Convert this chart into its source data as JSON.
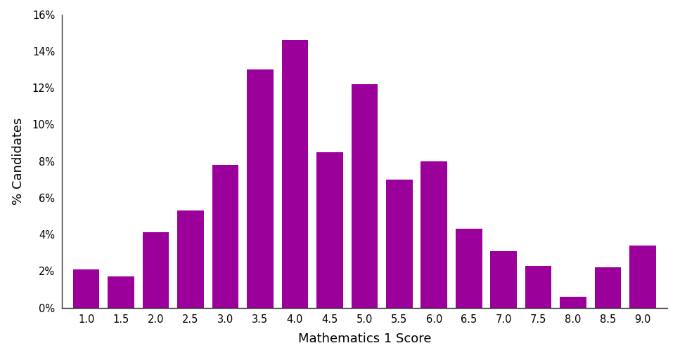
{
  "categories": [
    1.0,
    1.5,
    2.0,
    2.5,
    3.0,
    3.5,
    4.0,
    4.5,
    5.0,
    5.5,
    6.0,
    6.5,
    7.0,
    7.5,
    8.0,
    8.5,
    9.0
  ],
  "values": [
    2.1,
    1.7,
    4.1,
    5.3,
    7.8,
    13.0,
    14.6,
    8.5,
    12.2,
    7.0,
    8.0,
    4.3,
    3.1,
    2.3,
    0.6,
    2.2,
    3.4
  ],
  "bar_color": "#9B009B",
  "xlabel": "Mathematics 1 Score",
  "ylabel": "% Candidates",
  "ylim": [
    0,
    16
  ],
  "yticks": [
    0,
    2,
    4,
    6,
    8,
    10,
    12,
    14,
    16
  ],
  "bar_width": 0.38,
  "background_color": "#ffffff"
}
